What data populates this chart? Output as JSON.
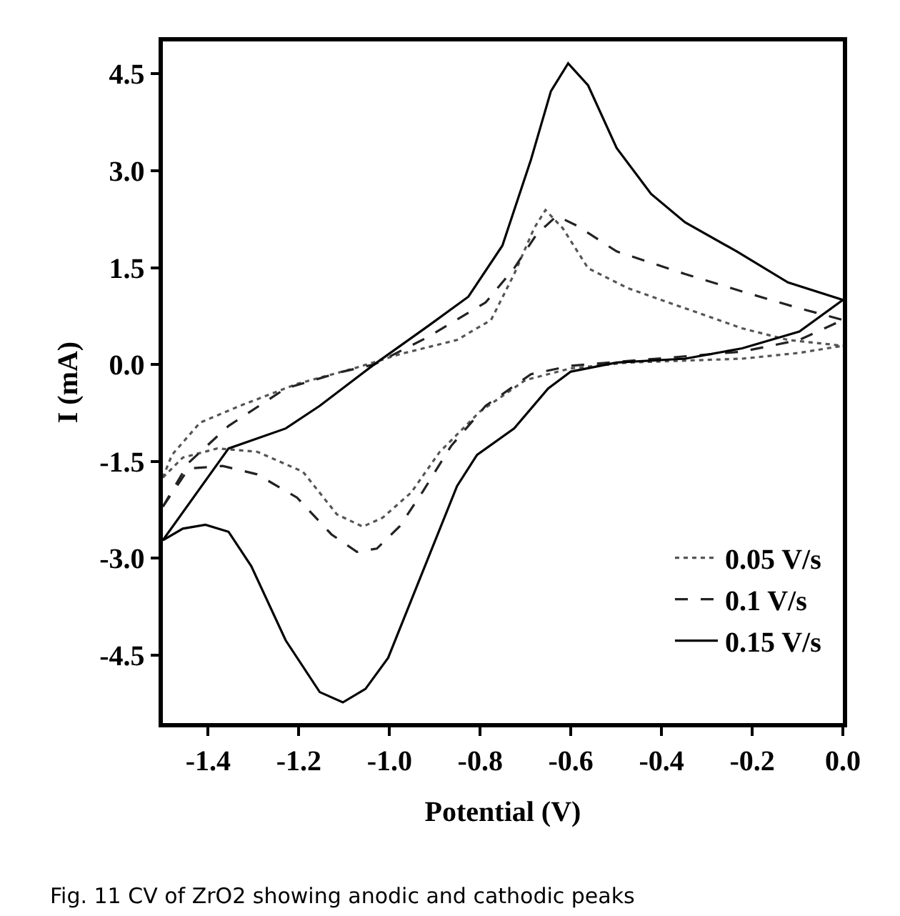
{
  "chart_data": {
    "type": "line",
    "xlabel": "Potential (V)",
    "ylabel": "I (mA)",
    "xlim": [
      -1.5,
      0.0
    ],
    "ylim": [
      -5.55,
      5.0
    ],
    "xticks": [
      -1.4,
      -1.2,
      {
        "value": -1.0,
        "label": "-1.0"
      },
      -0.8,
      -0.6,
      -0.4,
      -0.2,
      {
        "value": 0.0,
        "label": "0.0"
      }
    ],
    "yticks": [
      -4.5,
      {
        "value": -3.0,
        "label": "-3.0"
      },
      -1.5,
      {
        "value": 0.0,
        "label": "0.0"
      },
      1.5,
      {
        "value": 3.0,
        "label": "3.0"
      },
      4.5
    ],
    "grid": false,
    "legend": "bottom right",
    "marker": "none",
    "annotations": [
      "Fig. 11 CV of ZrO2 showing anodic and cathodic peaks"
    ],
    "series": [
      {
        "name": "0.05 V/s",
        "color": "#555555",
        "line_style": "dotted",
        "x": [
          -1.5,
          -1.48,
          -1.418,
          -1.33,
          -1.204,
          -1.078,
          -0.977,
          -0.851,
          -0.776,
          -0.725,
          -0.681,
          -0.656,
          -0.618,
          -0.562,
          -0.474,
          -0.348,
          -0.222,
          -0.121,
          0.0
        ],
        "values": [
          -1.75,
          -1.4,
          -0.9,
          -0.64,
          -0.3,
          -0.06,
          0.16,
          0.38,
          0.69,
          1.4,
          2.11,
          2.39,
          2.11,
          1.49,
          1.18,
          0.87,
          0.56,
          0.38,
          0.29
        ]
      },
      {
        "color": "#555555",
        "line_style": "dotted",
        "x": [
          -1.5,
          -1.456,
          -1.38,
          -1.292,
          -1.191,
          -1.116,
          -1.059,
          -1.015,
          -0.952,
          -0.889,
          -0.801,
          -0.7,
          -0.6,
          -0.474,
          -0.222,
          -0.096,
          0.0
        ],
        "values": [
          -1.75,
          -1.44,
          -1.3,
          -1.35,
          -1.66,
          -2.32,
          -2.51,
          -2.37,
          -1.98,
          -1.35,
          -0.73,
          -0.24,
          -0.06,
          0.03,
          0.09,
          0.18,
          0.29
        ]
      },
      {
        "name": "0.1 V/s",
        "color": "#222222",
        "line_style": "dashed",
        "x": [
          -1.5,
          -1.443,
          -1.355,
          -1.229,
          -1.103,
          -1.034,
          -0.914,
          -0.788,
          -0.725,
          -0.675,
          -0.631,
          -0.587,
          -0.499,
          -0.348,
          -0.222,
          -0.096,
          0.0
        ],
        "values": [
          -2.2,
          -1.52,
          -0.95,
          -0.37,
          -0.11,
          0.0,
          0.43,
          0.96,
          1.49,
          2.02,
          2.3,
          2.15,
          1.75,
          1.4,
          1.13,
          0.87,
          0.69
        ]
      },
      {
        "color": "#222222",
        "line_style": "dashed",
        "x": [
          -1.5,
          -1.443,
          -1.368,
          -1.292,
          -1.204,
          -1.128,
          -1.072,
          -1.028,
          -0.977,
          -0.927,
          -0.864,
          -0.788,
          -0.688,
          -0.6,
          -0.411,
          -0.222,
          -0.096,
          0.0
        ],
        "values": [
          -2.2,
          -1.61,
          -1.57,
          -1.7,
          -2.06,
          -2.63,
          -2.9,
          -2.85,
          -2.5,
          -1.97,
          -1.26,
          -0.64,
          -0.15,
          -0.02,
          0.09,
          0.2,
          0.38,
          0.69
        ]
      },
      {
        "name": "0.15 V/s",
        "color": "#000000",
        "line_style": "solid",
        "x": [
          -1.5,
          -1.355,
          -1.229,
          -1.154,
          -1.034,
          -0.914,
          -0.826,
          -0.751,
          -0.688,
          -0.644,
          -0.606,
          -0.562,
          -0.499,
          -0.423,
          -0.348,
          -0.234,
          -0.121,
          0.0
        ],
        "values": [
          -2.72,
          -1.3,
          -0.99,
          -0.64,
          0.0,
          0.6,
          1.05,
          1.84,
          3.17,
          4.23,
          4.66,
          4.32,
          3.35,
          2.64,
          2.2,
          1.75,
          1.27,
          1.0
        ]
      },
      {
        "color": "#000000",
        "line_style": "solid",
        "x": [
          -1.5,
          -1.456,
          -1.406,
          -1.355,
          -1.305,
          -1.229,
          -1.154,
          -1.103,
          -1.053,
          -1.003,
          -0.927,
          -0.851,
          -0.807,
          -0.725,
          -0.65,
          -0.6,
          -0.499,
          -0.348,
          -0.222,
          -0.096,
          0.0
        ],
        "values": [
          -2.72,
          -2.54,
          -2.48,
          -2.59,
          -3.12,
          -4.27,
          -5.07,
          -5.23,
          -5.02,
          -4.54,
          -3.21,
          -1.88,
          -1.4,
          -0.99,
          -0.37,
          -0.11,
          0.03,
          0.09,
          0.25,
          0.51,
          1.0
        ]
      }
    ]
  }
}
